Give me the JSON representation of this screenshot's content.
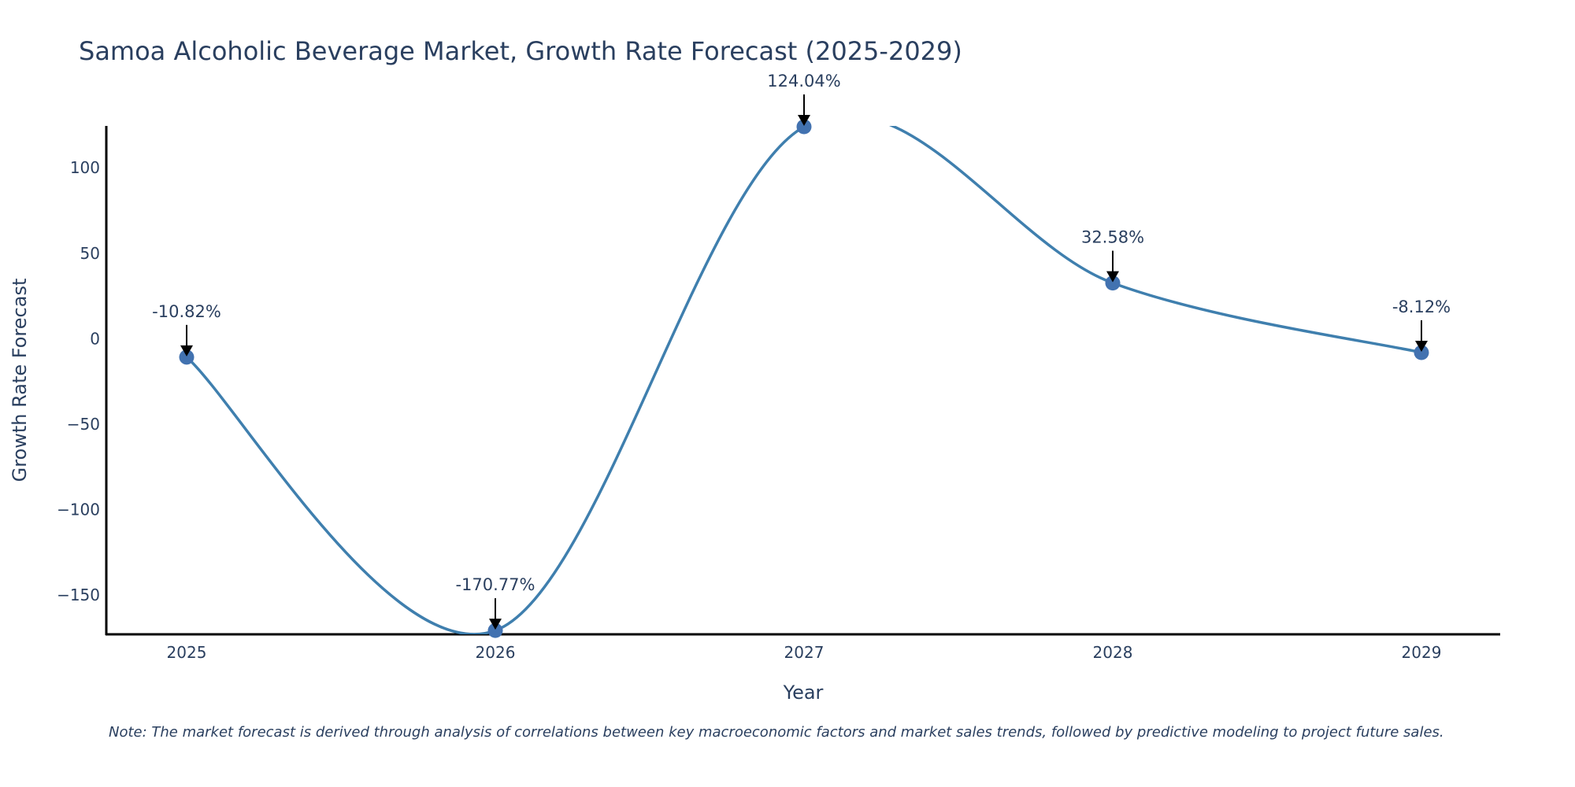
{
  "chart_data": {
    "type": "line",
    "title": "Samoa Alcoholic Beverage Market, Growth Rate Forecast (2025-2029)",
    "xlabel": "Year",
    "ylabel": "Growth Rate Forecast",
    "categories": [
      "2025",
      "2026",
      "2027",
      "2028",
      "2029"
    ],
    "values": [
      -10.82,
      -170.77,
      124.04,
      32.58,
      -8.12
    ],
    "data_labels": [
      "-10.82%",
      "-170.77%",
      "124.04%",
      "32.58%",
      "-8.12%"
    ],
    "ylim": [
      -173,
      124.5
    ],
    "yticks": [
      100,
      50,
      0,
      -50,
      -100,
      -150
    ],
    "ytick_labels": [
      "100",
      "50",
      "0",
      "−50",
      "−100",
      "−150"
    ],
    "line_shape": "spline",
    "grid": false,
    "legend": "none",
    "series_color": "#3f7fae",
    "marker_color": "#4272b0",
    "note": "Note: The market forecast is derived through analysis of correlations between key macroeconomic factors and market sales trends, followed by predictive modeling to project future sales."
  }
}
